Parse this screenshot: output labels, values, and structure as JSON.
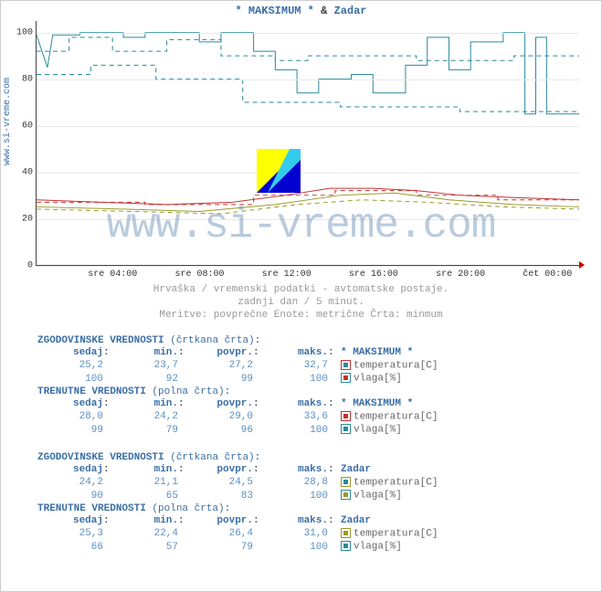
{
  "title": {
    "a": "* MAKSIMUM *",
    "amp": "&",
    "b": "Zadar"
  },
  "source_url": "www.si-vreme.com",
  "watermark": "www.si-vreme.com",
  "chart": {
    "type": "line",
    "background_color": "#ffffff",
    "grid_color": "#e8e8e8",
    "axis_color": "#444444",
    "ylim": [
      0,
      105
    ],
    "yticks": [
      0,
      20,
      40,
      60,
      80,
      100
    ],
    "xticks": [
      "sre 04:00",
      "sre 08:00",
      "sre 12:00",
      "sre 16:00",
      "sre 20:00",
      "čet 00:00"
    ],
    "xtick_pos": [
      0.14,
      0.3,
      0.46,
      0.62,
      0.78,
      0.94
    ],
    "series": [
      {
        "id": "max_vlaga_hist",
        "color": "#2a8a9a",
        "dash": true,
        "points": [
          [
            0,
            92
          ],
          [
            0.06,
            92
          ],
          [
            0.06,
            98
          ],
          [
            0.14,
            98
          ],
          [
            0.14,
            92
          ],
          [
            0.24,
            92
          ],
          [
            0.24,
            97
          ],
          [
            0.34,
            97
          ],
          [
            0.34,
            90
          ],
          [
            0.44,
            90
          ],
          [
            0.44,
            88
          ],
          [
            0.5,
            88
          ],
          [
            0.5,
            90
          ],
          [
            0.7,
            90
          ],
          [
            0.7,
            88
          ],
          [
            0.88,
            88
          ],
          [
            0.88,
            90
          ],
          [
            1.0,
            90
          ]
        ]
      },
      {
        "id": "max_vlaga_cur",
        "color": "#2a8a9a",
        "dash": false,
        "points": [
          [
            0,
            99
          ],
          [
            0.02,
            85
          ],
          [
            0.03,
            99
          ],
          [
            0.08,
            99
          ],
          [
            0.08,
            100
          ],
          [
            0.16,
            100
          ],
          [
            0.16,
            98
          ],
          [
            0.2,
            98
          ],
          [
            0.2,
            100
          ],
          [
            0.3,
            100
          ],
          [
            0.3,
            96
          ],
          [
            0.34,
            96
          ],
          [
            0.34,
            100
          ],
          [
            0.4,
            100
          ],
          [
            0.4,
            92
          ],
          [
            0.44,
            92
          ],
          [
            0.44,
            84
          ],
          [
            0.48,
            84
          ],
          [
            0.48,
            74
          ],
          [
            0.52,
            74
          ],
          [
            0.52,
            80
          ],
          [
            0.58,
            80
          ],
          [
            0.58,
            82
          ],
          [
            0.62,
            82
          ],
          [
            0.62,
            74
          ],
          [
            0.68,
            74
          ],
          [
            0.68,
            86
          ],
          [
            0.72,
            86
          ],
          [
            0.72,
            98
          ],
          [
            0.76,
            98
          ],
          [
            0.76,
            84
          ],
          [
            0.8,
            84
          ],
          [
            0.8,
            96
          ],
          [
            0.86,
            96
          ],
          [
            0.86,
            100
          ],
          [
            0.9,
            100
          ],
          [
            0.9,
            65
          ],
          [
            0.92,
            65
          ],
          [
            0.92,
            98
          ],
          [
            0.94,
            98
          ],
          [
            0.94,
            65
          ],
          [
            1.0,
            65
          ]
        ]
      },
      {
        "id": "zadar_vlaga_hist",
        "color": "#2a8a9a",
        "dash": true,
        "points": [
          [
            0,
            82
          ],
          [
            0.1,
            82
          ],
          [
            0.1,
            86
          ],
          [
            0.22,
            86
          ],
          [
            0.22,
            80
          ],
          [
            0.38,
            80
          ],
          [
            0.38,
            70
          ],
          [
            0.56,
            70
          ],
          [
            0.56,
            68
          ],
          [
            0.78,
            68
          ],
          [
            0.78,
            66
          ],
          [
            1.0,
            66
          ]
        ]
      },
      {
        "id": "max_temp_hist",
        "color": "#c73030",
        "dash": true,
        "points": [
          [
            0,
            27
          ],
          [
            0.2,
            27
          ],
          [
            0.2,
            26
          ],
          [
            0.4,
            26
          ],
          [
            0.4,
            30
          ],
          [
            0.55,
            30
          ],
          [
            0.55,
            32
          ],
          [
            0.7,
            32
          ],
          [
            0.7,
            30
          ],
          [
            0.85,
            30
          ],
          [
            0.85,
            28
          ],
          [
            1.0,
            28
          ]
        ]
      },
      {
        "id": "max_temp_cur",
        "color": "#c73030",
        "dash": false,
        "points": [
          [
            0,
            28
          ],
          [
            0.12,
            27
          ],
          [
            0.24,
            26
          ],
          [
            0.36,
            27
          ],
          [
            0.46,
            30
          ],
          [
            0.54,
            33
          ],
          [
            0.62,
            33
          ],
          [
            0.7,
            32
          ],
          [
            0.78,
            30
          ],
          [
            0.88,
            29
          ],
          [
            1.0,
            28
          ]
        ]
      },
      {
        "id": "zadar_temp_hist",
        "color": "#9a9a2a",
        "dash": true,
        "points": [
          [
            0,
            24
          ],
          [
            0.18,
            23
          ],
          [
            0.34,
            22
          ],
          [
            0.48,
            26
          ],
          [
            0.6,
            28
          ],
          [
            0.72,
            27
          ],
          [
            0.86,
            25
          ],
          [
            1.0,
            24
          ]
        ]
      },
      {
        "id": "zadar_temp_cur",
        "color": "#9a9a2a",
        "dash": false,
        "points": [
          [
            0,
            25
          ],
          [
            0.16,
            24
          ],
          [
            0.3,
            23
          ],
          [
            0.44,
            26
          ],
          [
            0.56,
            30
          ],
          [
            0.66,
            31
          ],
          [
            0.76,
            28
          ],
          [
            0.88,
            26
          ],
          [
            1.0,
            25
          ]
        ]
      }
    ]
  },
  "captions": {
    "line1": "Hrvaška / vremenski podatki - avtomatske postaje.",
    "line2": "zadnji dan / 5 minut.",
    "line3": "Meritve: povprečne  Enote: metrične  Črta: minmum"
  },
  "blocks": [
    {
      "heading": "ZGODOVINSKE VREDNOSTI",
      "heading_paren": "(črtkana črta)",
      "series_name": "* MAKSIMUM *",
      "cols": [
        "sedaj",
        "min.",
        "povpr.",
        "maks."
      ],
      "rows": [
        {
          "vals": [
            "25,2",
            "23,7",
            "27,2",
            "32,7"
          ],
          "label": "temperatura[C]",
          "sw_border": "#c73030",
          "sw_fill": "#2a8a9a"
        },
        {
          "vals": [
            "100",
            "92",
            "99",
            "100"
          ],
          "label": "vlaga[%]",
          "sw_border": "#2a8a9a",
          "sw_fill": "#c73030"
        }
      ]
    },
    {
      "heading": "TRENUTNE VREDNOSTI",
      "heading_paren": "(polna črta)",
      "series_name": "* MAKSIMUM *",
      "cols": [
        "sedaj",
        "min.",
        "povpr.",
        "maks."
      ],
      "rows": [
        {
          "vals": [
            "28,0",
            "24,2",
            "29,0",
            "33,6"
          ],
          "label": "temperatura[C]",
          "sw_border": "#c73030",
          "sw_fill": "#c73030"
        },
        {
          "vals": [
            "99",
            "79",
            "96",
            "100"
          ],
          "label": "vlaga[%]",
          "sw_border": "#2a8a9a",
          "sw_fill": "#2a8a9a"
        }
      ]
    },
    {
      "heading": "ZGODOVINSKE VREDNOSTI",
      "heading_paren": "(črtkana črta)",
      "series_name": "Zadar",
      "cols": [
        "sedaj",
        "min.",
        "povpr.",
        "maks."
      ],
      "rows": [
        {
          "vals": [
            "24,2",
            "21,1",
            "24,5",
            "28,8"
          ],
          "label": "temperatura[C]",
          "sw_border": "#9a9a2a",
          "sw_fill": "#2a8a9a"
        },
        {
          "vals": [
            "90",
            "65",
            "83",
            "100"
          ],
          "label": "vlaga[%]",
          "sw_border": "#2a8a9a",
          "sw_fill": "#9a9a2a"
        }
      ]
    },
    {
      "heading": "TRENUTNE VREDNOSTI",
      "heading_paren": "(polna črta)",
      "series_name": "Zadar",
      "cols": [
        "sedaj",
        "min.",
        "povpr.",
        "maks."
      ],
      "rows": [
        {
          "vals": [
            "25,3",
            "22,4",
            "26,4",
            "31,0"
          ],
          "label": "temperatura[C]",
          "sw_border": "#9a9a2a",
          "sw_fill": "#9a9a2a"
        },
        {
          "vals": [
            "66",
            "57",
            "79",
            "100"
          ],
          "label": "vlaga[%]",
          "sw_border": "#2a8a9a",
          "sw_fill": "#2a8a9a"
        }
      ]
    }
  ],
  "logo_colors": {
    "tl": "#ffff00",
    "tr": "#33ccee",
    "bl": "#33ccee",
    "br": "#0000d0"
  }
}
